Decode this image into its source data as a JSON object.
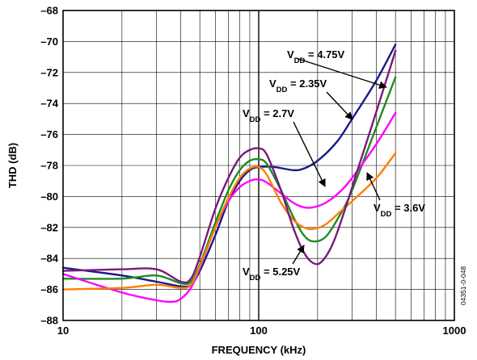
{
  "chart_data": {
    "type": "line",
    "x_scale": "log",
    "xlabel": "FREQUENCY (kHz)",
    "ylabel": "THD (dB)",
    "xlim": [
      10,
      1000
    ],
    "ylim": [
      -88,
      -68
    ],
    "grid": true,
    "x_ticks": [
      "10",
      "100",
      "1000"
    ],
    "y_ticks": [
      "–68",
      "–70",
      "–72",
      "–74",
      "–76",
      "–78",
      "–80",
      "–82",
      "–84",
      "–86",
      "–88"
    ],
    "figure_id": "04351-0-048",
    "series": [
      {
        "name": "VDD = 4.75V",
        "color": "#1a1a8c",
        "points": [
          [
            10,
            -84.6
          ],
          [
            20,
            -85.1
          ],
          [
            30,
            -85.5
          ],
          [
            40,
            -85.8
          ],
          [
            45,
            -85.7
          ],
          [
            50,
            -84.8
          ],
          [
            60,
            -82.5
          ],
          [
            70,
            -80.3
          ],
          [
            80,
            -79.0
          ],
          [
            90,
            -78.3
          ],
          [
            100,
            -78.1
          ],
          [
            120,
            -78.1
          ],
          [
            150,
            -78.3
          ],
          [
            170,
            -78.2
          ],
          [
            200,
            -77.7
          ],
          [
            250,
            -76.5
          ],
          [
            300,
            -75.0
          ],
          [
            400,
            -72.5
          ],
          [
            500,
            -70.2
          ]
        ]
      },
      {
        "name": "VDD = 2.35V",
        "color": "#1e8c1e",
        "points": [
          [
            10,
            -85.3
          ],
          [
            20,
            -85.3
          ],
          [
            30,
            -85.1
          ],
          [
            40,
            -85.6
          ],
          [
            45,
            -85.5
          ],
          [
            50,
            -84.4
          ],
          [
            60,
            -81.7
          ],
          [
            70,
            -79.6
          ],
          [
            80,
            -78.3
          ],
          [
            90,
            -77.7
          ],
          [
            100,
            -77.6
          ],
          [
            110,
            -77.9
          ],
          [
            130,
            -79.6
          ],
          [
            150,
            -81.3
          ],
          [
            170,
            -82.5
          ],
          [
            190,
            -82.9
          ],
          [
            220,
            -82.6
          ],
          [
            260,
            -81.2
          ],
          [
            300,
            -79.6
          ],
          [
            400,
            -75.5
          ],
          [
            500,
            -72.3
          ]
        ]
      },
      {
        "name": "VDD = 2.7V",
        "color": "#ff00ff",
        "points": [
          [
            10,
            -85.0
          ],
          [
            20,
            -86.2
          ],
          [
            30,
            -86.7
          ],
          [
            36,
            -86.8
          ],
          [
            40,
            -86.6
          ],
          [
            45,
            -85.9
          ],
          [
            50,
            -84.6
          ],
          [
            60,
            -82.0
          ],
          [
            70,
            -80.3
          ],
          [
            80,
            -79.4
          ],
          [
            90,
            -79.0
          ],
          [
            100,
            -78.9
          ],
          [
            110,
            -79.1
          ],
          [
            130,
            -79.8
          ],
          [
            150,
            -80.4
          ],
          [
            170,
            -80.7
          ],
          [
            190,
            -80.7
          ],
          [
            220,
            -80.4
          ],
          [
            260,
            -79.7
          ],
          [
            300,
            -78.8
          ],
          [
            400,
            -76.6
          ],
          [
            500,
            -74.6
          ]
        ]
      },
      {
        "name": "VDD = 3.6V",
        "color": "#ff7f00",
        "points": [
          [
            10,
            -86.0
          ],
          [
            20,
            -85.9
          ],
          [
            30,
            -85.7
          ],
          [
            40,
            -85.9
          ],
          [
            45,
            -85.7
          ],
          [
            50,
            -84.5
          ],
          [
            60,
            -82.0
          ],
          [
            70,
            -80.1
          ],
          [
            80,
            -78.8
          ],
          [
            90,
            -78.2
          ],
          [
            100,
            -78.1
          ],
          [
            110,
            -78.6
          ],
          [
            130,
            -80.4
          ],
          [
            150,
            -81.5
          ],
          [
            170,
            -82.0
          ],
          [
            190,
            -82.1
          ],
          [
            220,
            -81.8
          ],
          [
            260,
            -81.0
          ],
          [
            300,
            -80.3
          ],
          [
            400,
            -78.8
          ],
          [
            500,
            -77.2
          ]
        ]
      },
      {
        "name": "VDD = 5.25V",
        "color": "#7a1a7a",
        "points": [
          [
            10,
            -84.8
          ],
          [
            20,
            -84.7
          ],
          [
            30,
            -84.7
          ],
          [
            40,
            -85.5
          ],
          [
            45,
            -85.3
          ],
          [
            50,
            -83.9
          ],
          [
            60,
            -80.8
          ],
          [
            70,
            -78.8
          ],
          [
            80,
            -77.5
          ],
          [
            90,
            -77.0
          ],
          [
            100,
            -76.9
          ],
          [
            110,
            -77.3
          ],
          [
            130,
            -79.6
          ],
          [
            150,
            -82.0
          ],
          [
            170,
            -83.6
          ],
          [
            190,
            -84.3
          ],
          [
            210,
            -84.2
          ],
          [
            240,
            -83.0
          ],
          [
            280,
            -80.6
          ],
          [
            320,
            -78.3
          ],
          [
            400,
            -74.5
          ],
          [
            500,
            -70.6
          ]
        ]
      }
    ],
    "annotations": [
      {
        "base": "V",
        "sub": "DD",
        "rest": " = 4.75V",
        "tx": 355,
        "ty": 72,
        "ax": 366,
        "ay": 72,
        "bx": 478,
        "by": 108
      },
      {
        "base": "V",
        "sub": "DD",
        "rest": " = 2.35V",
        "tx": 333,
        "ty": 108,
        "ax": 404,
        "ay": 114,
        "bx": 436,
        "by": 148
      },
      {
        "base": "V",
        "sub": "DD",
        "rest": " = 2.7V",
        "tx": 300,
        "ty": 145,
        "ax": 363,
        "ay": 151,
        "bx": 402,
        "by": 231
      },
      {
        "base": "V",
        "sub": "DD",
        "rest": " = 3.6V",
        "tx": 462,
        "ty": 262,
        "ax": 470,
        "ay": 248,
        "bx": 454,
        "by": 214
      },
      {
        "base": "V",
        "sub": "DD",
        "rest": " = 5.25V",
        "tx": 300,
        "ty": 341,
        "ax": 362,
        "ay": 327,
        "bx": 376,
        "by": 304
      }
    ]
  }
}
